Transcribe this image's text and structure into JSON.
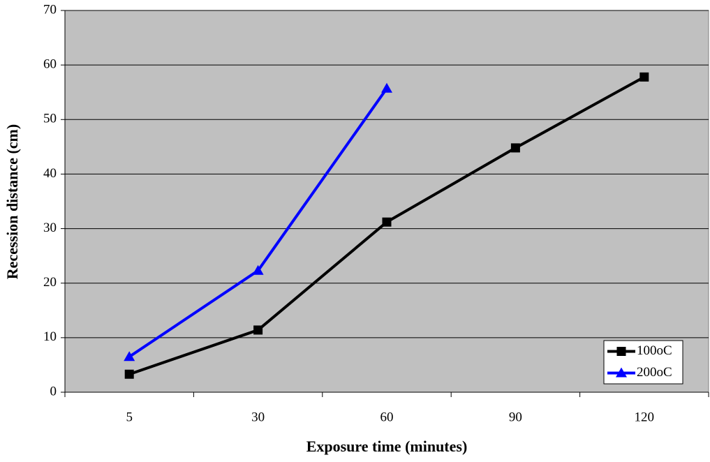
{
  "chart_data": {
    "type": "line",
    "x_label": "Exposure time (minutes)",
    "y_label": "Recession distance (cm)",
    "categories": [
      "5",
      "30",
      "60",
      "90",
      "120"
    ],
    "series": [
      {
        "name": "100oC",
        "color": "#000000",
        "marker": "square",
        "values": [
          3.3,
          11.4,
          31.2,
          44.8,
          57.8
        ]
      },
      {
        "name": "200oC",
        "color": "#0000ff",
        "marker": "triangle",
        "values": [
          6.5,
          22.3,
          55.7,
          null,
          null
        ]
      }
    ],
    "ylim": [
      0,
      70
    ],
    "yticks": [
      0,
      10,
      20,
      30,
      40,
      50,
      60,
      70
    ],
    "grid": true,
    "plot_background": "#c0c0c0",
    "legend_position": "lower right"
  }
}
